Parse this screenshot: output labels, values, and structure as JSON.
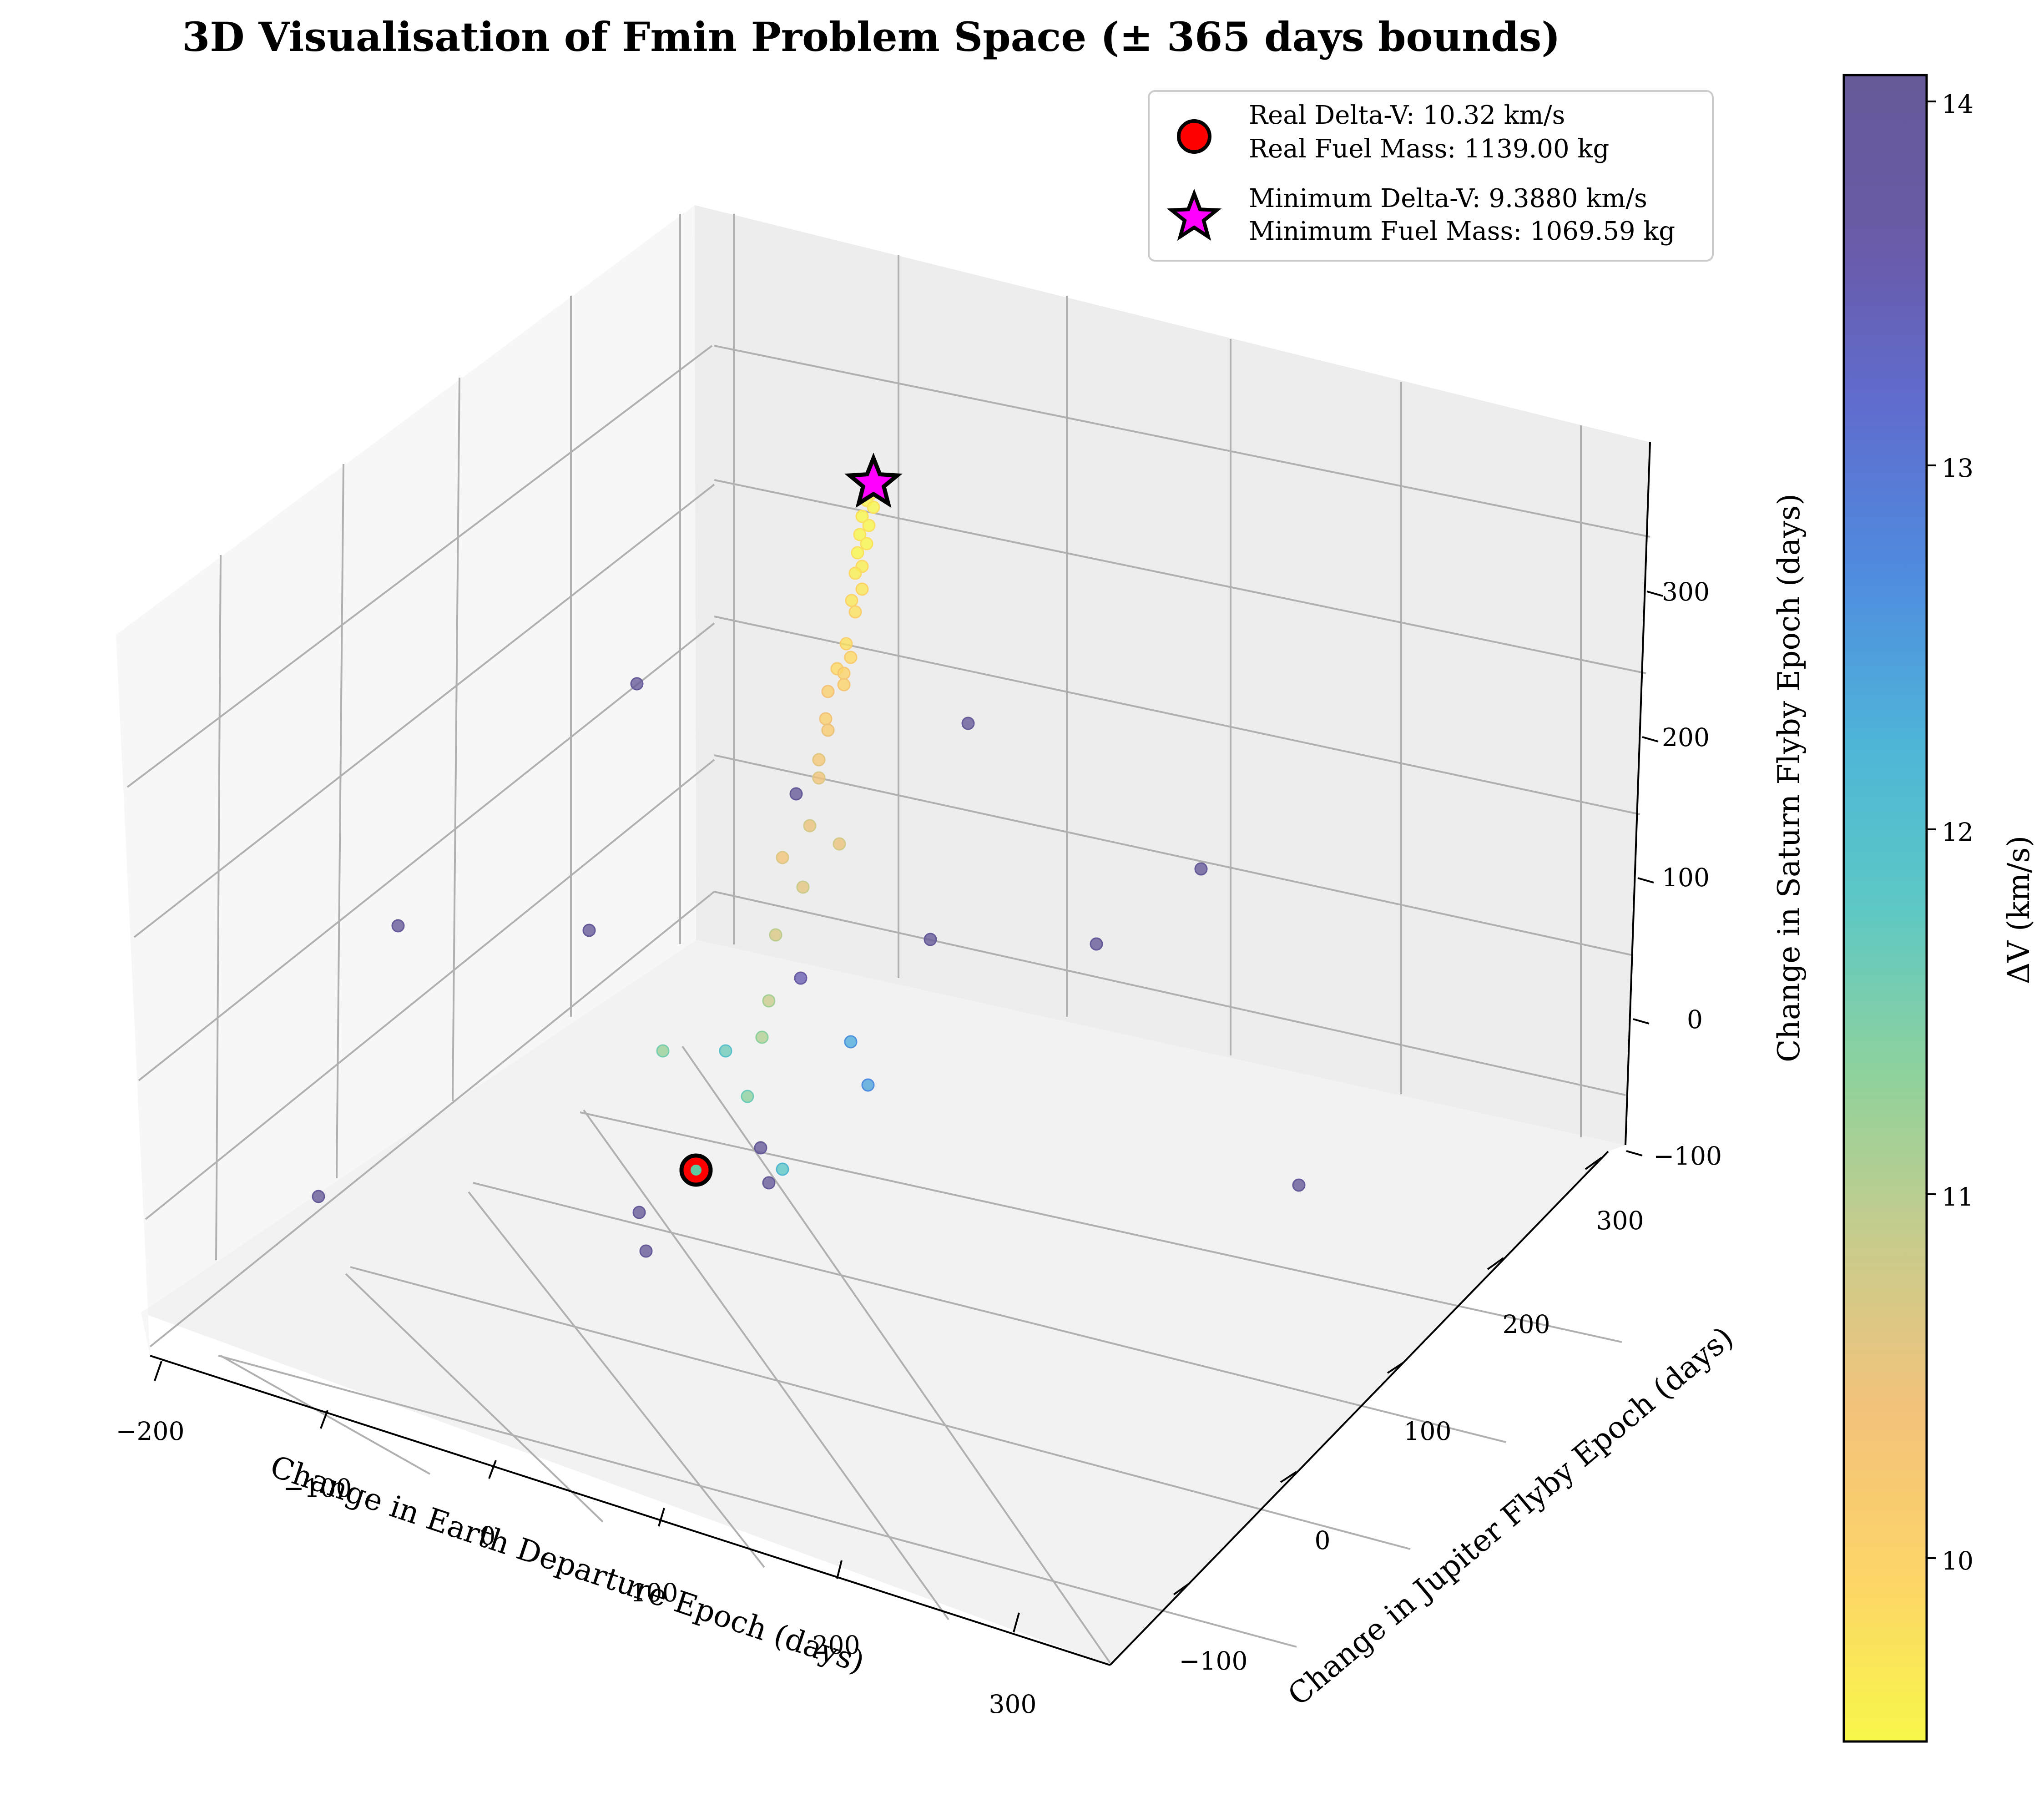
{
  "chart_data": {
    "type": "scatter",
    "projection": "3d",
    "title": "3D Visualisation of Fmin Problem Space (± 365 days bounds)",
    "xlabel": "Change in Earth Departure Epoch (days)",
    "ylabel": "Change in Jupiter Flyby Epoch (days)",
    "zlabel": "Change in Saturn Flyby Epoch (days)",
    "xticks": [
      "−200",
      "−100",
      "0",
      "100",
      "200",
      "300"
    ],
    "yticks": [
      "−100",
      "0",
      "100",
      "200",
      "300"
    ],
    "zticks": [
      "−100",
      "0",
      "100",
      "200",
      "300"
    ],
    "grid": true,
    "colorbar": {
      "label": "ΔV (km/s)",
      "ticks": [
        "10",
        "11",
        "12",
        "13",
        "14"
      ],
      "range": [
        9.39,
        14.1
      ],
      "colormap": "plasma_r",
      "colors": [
        "#f7f74a",
        "#fdd468",
        "#f2c27a",
        "#c9cc8c",
        "#8fd29c",
        "#5ec8c4",
        "#4fb4d8",
        "#4f8cdf",
        "#5f6dcf",
        "#6a5aa8",
        "#665a98"
      ]
    },
    "legend": {
      "placement": "top-right",
      "entries": [
        {
          "marker": "circle",
          "color": "#ff0000",
          "lines": [
            "Real Delta-V: 10.32 km/s",
            "Real Fuel Mass: 1139.00 kg"
          ]
        },
        {
          "marker": "star",
          "color": "#ff00ff",
          "lines": [
            "Minimum Delta-V: 9.3880 km/s",
            "Minimum Fuel Mass: 1069.59 kg"
          ]
        }
      ]
    },
    "special_points": {
      "real": {
        "delta_v": 10.32
      },
      "minimum": {
        "delta_v": 9.388
      }
    },
    "points_dv": [
      9.4,
      9.4,
      9.4,
      9.4,
      9.4,
      9.4,
      9.4,
      9.4,
      9.4,
      9.5,
      9.5,
      9.6,
      9.6,
      9.7,
      9.7,
      9.8,
      9.8,
      9.9,
      9.9,
      10.0,
      10.0,
      10.1,
      10.2,
      10.3,
      10.4,
      10.4,
      10.3,
      10.5,
      10.6,
      10.8,
      11.0,
      11.3,
      11.8,
      12.3,
      12.4,
      13.5,
      14.1,
      14.1,
      14.1,
      14.1,
      14.1,
      14.1,
      14.1,
      14.1,
      14.1,
      14.1,
      14.1,
      14.1,
      14.1,
      14.1,
      11.2,
      11.6
    ]
  }
}
